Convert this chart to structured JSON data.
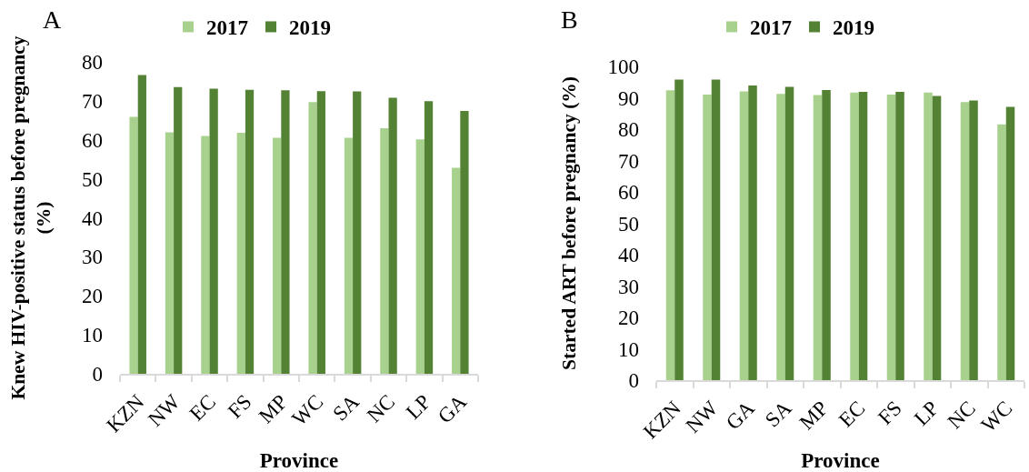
{
  "chart_data": [
    {
      "type": "bar",
      "title": "A",
      "categories": [
        "KZN",
        "NW",
        "EC",
        "FS",
        "MP",
        "WC",
        "SA",
        "NC",
        "LP",
        "GA"
      ],
      "series": [
        {
          "name": "2017",
          "color": "#a9d18e",
          "values": [
            65.9,
            61.9,
            61.0,
            61.8,
            60.5,
            69.7,
            60.5,
            63.0,
            60.1,
            52.8
          ]
        },
        {
          "name": "2019",
          "color": "#548235",
          "values": [
            76.6,
            73.5,
            73.1,
            72.8,
            72.7,
            72.5,
            72.4,
            70.8,
            69.9,
            67.4
          ]
        }
      ],
      "xlabel": "Province",
      "ylabel": "Knew HIV-positive status before pregnancy\n(%)",
      "ylim": [
        0,
        80
      ],
      "yticks": [
        0,
        10,
        20,
        30,
        40,
        50,
        60,
        70,
        80
      ],
      "legend": "top"
    },
    {
      "type": "bar",
      "title": "B",
      "categories": [
        "KZN",
        "NW",
        "GA",
        "SA",
        "MP",
        "EC",
        "FS",
        "LP",
        "NC",
        "WC"
      ],
      "series": [
        {
          "name": "2017",
          "color": "#a9d18e",
          "values": [
            92.4,
            91.0,
            92.0,
            91.2,
            90.9,
            91.7,
            91.0,
            91.7,
            88.6,
            81.5
          ]
        },
        {
          "name": "2019",
          "color": "#548235",
          "values": [
            95.8,
            95.8,
            93.9,
            93.5,
            92.5,
            91.9,
            91.9,
            90.6,
            89.1,
            87.1
          ]
        }
      ],
      "xlabel": "Province",
      "ylabel": "Started ART before pregnancy (%)",
      "ylim": [
        0,
        100
      ],
      "yticks": [
        0,
        10,
        20,
        30,
        40,
        50,
        60,
        70,
        80,
        90,
        100
      ],
      "legend": "top"
    }
  ]
}
